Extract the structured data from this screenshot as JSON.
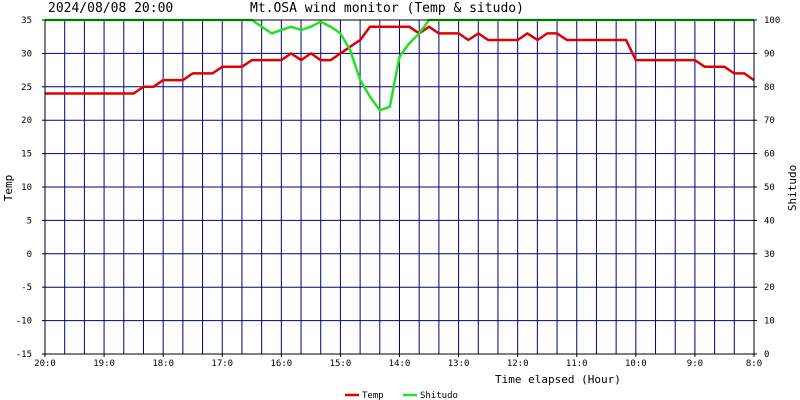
{
  "header": {
    "timestamp": "2024/08/08 20:00",
    "title": "Mt.OSA wind monitor (Temp & situdo)"
  },
  "chart_data": {
    "type": "line",
    "xlabel": "Time elapsed (Hour)",
    "ylabel_left": "Temp",
    "ylabel_right": "Shitudo",
    "xlim": [
      0,
      24
    ],
    "ylim_left": [
      -15,
      35
    ],
    "ylim_right": [
      0,
      100
    ],
    "x_ticks": [
      {
        "x": 0,
        "label": "20:0"
      },
      {
        "x": 2,
        "label": "19:0"
      },
      {
        "x": 4,
        "label": "18:0"
      },
      {
        "x": 6,
        "label": "17:0"
      },
      {
        "x": 8,
        "label": "16:0"
      },
      {
        "x": 10,
        "label": "15:0"
      },
      {
        "x": 12,
        "label": "14:0"
      },
      {
        "x": 14,
        "label": "13:0"
      },
      {
        "x": 16,
        "label": "12:0"
      },
      {
        "x": 18,
        "label": "11:0"
      },
      {
        "x": 20,
        "label": "10:0"
      },
      {
        "x": 22,
        "label": "9:0"
      },
      {
        "x": 24,
        "label": "8:0"
      }
    ],
    "y_ticks_left": [
      35,
      30,
      25,
      20,
      15,
      10,
      5,
      0,
      -5,
      -10,
      -15
    ],
    "y_ticks_right": [
      100,
      90,
      80,
      70,
      60,
      50,
      40,
      30,
      20,
      10,
      0
    ],
    "grid": true,
    "legend_position": "bottom-center",
    "series": [
      {
        "name": "Temp",
        "axis": "left",
        "color": "#e00000",
        "points": [
          [
            0,
            24
          ],
          [
            3,
            24
          ],
          [
            3.33,
            25
          ],
          [
            3.67,
            25
          ],
          [
            4,
            26
          ],
          [
            4.67,
            26
          ],
          [
            5,
            27
          ],
          [
            5.67,
            27
          ],
          [
            6,
            28
          ],
          [
            6.67,
            28
          ],
          [
            7,
            29
          ],
          [
            8,
            29
          ],
          [
            8.33,
            30
          ],
          [
            8.67,
            29
          ],
          [
            9,
            30
          ],
          [
            9.33,
            29
          ],
          [
            9.67,
            29
          ],
          [
            10,
            30
          ],
          [
            10.33,
            31
          ],
          [
            10.67,
            32
          ],
          [
            11,
            34
          ],
          [
            12.33,
            34
          ],
          [
            12.67,
            33
          ],
          [
            13,
            34
          ],
          [
            13.33,
            33
          ],
          [
            14,
            33
          ],
          [
            14.33,
            32
          ],
          [
            14.67,
            33
          ],
          [
            15,
            32
          ],
          [
            16,
            32
          ],
          [
            16.33,
            33
          ],
          [
            16.67,
            32
          ],
          [
            17,
            33
          ],
          [
            17.33,
            33
          ],
          [
            17.67,
            32
          ],
          [
            19.67,
            32
          ],
          [
            20,
            29
          ],
          [
            22,
            29
          ],
          [
            22.33,
            28
          ],
          [
            23,
            28
          ],
          [
            23.33,
            27
          ],
          [
            23.67,
            27
          ],
          [
            24,
            26
          ]
        ]
      },
      {
        "name": "Shitudo",
        "axis": "right",
        "color": "#22e022",
        "points": [
          [
            0,
            100
          ],
          [
            7,
            100
          ],
          [
            7.67,
            96
          ],
          [
            8.33,
            98
          ],
          [
            8.67,
            97
          ],
          [
            9,
            98
          ],
          [
            9.33,
            99.5
          ],
          [
            9.67,
            98
          ],
          [
            10,
            96
          ],
          [
            10.33,
            91
          ],
          [
            10.67,
            82
          ],
          [
            11,
            77
          ],
          [
            11.33,
            73
          ],
          [
            11.67,
            74
          ],
          [
            12,
            89
          ],
          [
            12.33,
            93
          ],
          [
            12.67,
            96
          ],
          [
            13,
            100
          ],
          [
            24,
            100
          ]
        ]
      }
    ]
  }
}
